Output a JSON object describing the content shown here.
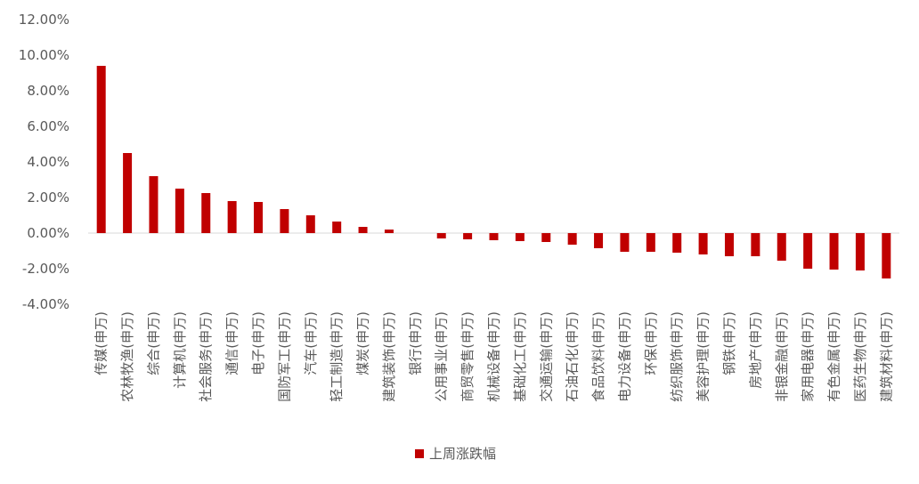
{
  "chart_data": {
    "type": "bar",
    "title": "",
    "xlabel": "",
    "ylabel": "",
    "ylim": [
      -4,
      12
    ],
    "yticks": [
      -4,
      -2,
      0,
      2,
      4,
      6,
      8,
      10,
      12
    ],
    "ytick_labels": [
      "-4.00%",
      "-2.00%",
      "0.00%",
      "2.00%",
      "4.00%",
      "6.00%",
      "8.00%",
      "10.00%",
      "12.00%"
    ],
    "grid": false,
    "legend_position": "bottom",
    "bar_color": "#C00000",
    "categories": [
      "传媒(申万)",
      "农林牧渔(申万)",
      "综合(申万)",
      "计算机(申万)",
      "社会服务(申万)",
      "通信(申万)",
      "电子(申万)",
      "国防军工(申万)",
      "汽车(申万)",
      "轻工制造(申万)",
      "煤炭(申万)",
      "建筑装饰(申万)",
      "银行(申万)",
      "公用事业(申万)",
      "商贸零售(申万)",
      "机械设备(申万)",
      "基础化工(申万)",
      "交通运输(申万)",
      "石油石化(申万)",
      "食品饮料(申万)",
      "电力设备(申万)",
      "环保(申万)",
      "纺织服饰(申万)",
      "美容护理(申万)",
      "钢铁(申万)",
      "房地产(申万)",
      "非银金融(申万)",
      "家用电器(申万)",
      "有色金属(申万)",
      "医药生物(申万)",
      "建筑材料(申万)"
    ],
    "series": [
      {
        "name": "上周涨跌幅",
        "values": [
          9.4,
          4.5,
          3.2,
          2.5,
          2.25,
          1.8,
          1.75,
          1.35,
          1.0,
          0.65,
          0.35,
          0.2,
          0.0,
          -0.3,
          -0.35,
          -0.4,
          -0.45,
          -0.5,
          -0.65,
          -0.85,
          -1.05,
          -1.05,
          -1.1,
          -1.2,
          -1.3,
          -1.3,
          -1.55,
          -2.0,
          -2.05,
          -2.1,
          -2.55
        ]
      }
    ]
  }
}
